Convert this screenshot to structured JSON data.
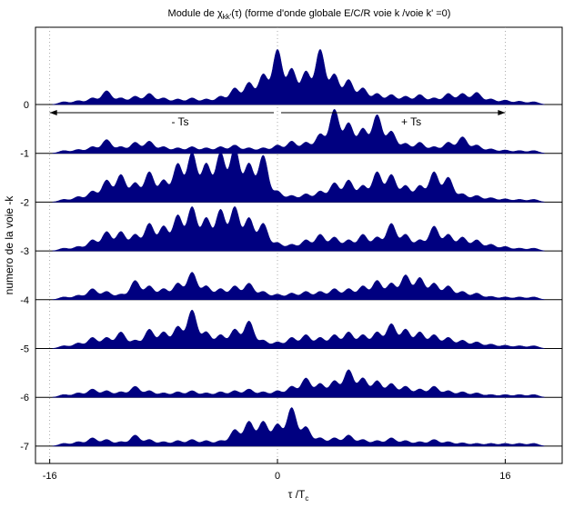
{
  "chart_data": {
    "type": "area",
    "title_prefix": "Module de ",
    "title_symbol": "χ",
    "title_sub": "kk'",
    "title_arg": "(τ)",
    "title_suffix": " (forme d'onde globale E/C/R voie k /voie k' =0)",
    "xlabel_main": "τ /T",
    "xlabel_sub": "c",
    "ylabel": "numero de la voie -k",
    "xlim": [
      -17,
      20
    ],
    "xticks": [
      -16,
      0,
      16
    ],
    "xtick_labels": [
      "-16",
      "0",
      "16"
    ],
    "yticks": [
      "0",
      "-1",
      "-2",
      "-3",
      "-4",
      "-5",
      "-6",
      "-7"
    ],
    "grid": "vertical dotted at x ticks",
    "fill_color": "#000080",
    "annotations": [
      {
        "text": "- Ts",
        "from": 0,
        "to": -16
      },
      {
        "text": "+ Ts",
        "from": 0,
        "to": 16
      }
    ],
    "series": [
      {
        "channel": "0",
        "peaks": [
          [
            -15,
            0.05
          ],
          [
            -14,
            0.07
          ],
          [
            -13,
            0.12
          ],
          [
            -12,
            0.25
          ],
          [
            -11,
            0.12
          ],
          [
            -10,
            0.15
          ],
          [
            -9,
            0.2
          ],
          [
            -8,
            0.12
          ],
          [
            -7,
            0.1
          ],
          [
            -6,
            0.12
          ],
          [
            -5,
            0.1
          ],
          [
            -4,
            0.15
          ],
          [
            -3,
            0.3
          ],
          [
            -2,
            0.4
          ],
          [
            -1,
            0.55
          ],
          [
            0,
            1.0
          ],
          [
            1,
            0.65
          ],
          [
            2,
            0.6
          ],
          [
            3,
            1.0
          ],
          [
            4,
            0.55
          ],
          [
            5,
            0.45
          ],
          [
            6,
            0.3
          ],
          [
            7,
            0.2
          ],
          [
            8,
            0.18
          ],
          [
            9,
            0.15
          ],
          [
            10,
            0.18
          ],
          [
            11,
            0.12
          ],
          [
            12,
            0.2
          ],
          [
            13,
            0.2
          ],
          [
            14,
            0.22
          ],
          [
            15,
            0.1
          ],
          [
            16,
            0.08
          ],
          [
            17,
            0.06
          ],
          [
            18,
            0.05
          ]
        ]
      },
      {
        "channel": "-1",
        "peaks": [
          [
            -15,
            0.05
          ],
          [
            -14,
            0.07
          ],
          [
            -13,
            0.12
          ],
          [
            -12,
            0.25
          ],
          [
            -11,
            0.12
          ],
          [
            -10,
            0.2
          ],
          [
            -9,
            0.22
          ],
          [
            -8,
            0.12
          ],
          [
            -7,
            0.1
          ],
          [
            -6,
            0.12
          ],
          [
            -5,
            0.1
          ],
          [
            -4,
            0.12
          ],
          [
            -3,
            0.15
          ],
          [
            -2,
            0.1
          ],
          [
            -1,
            0.1
          ],
          [
            0,
            0.15
          ],
          [
            1,
            0.22
          ],
          [
            2,
            0.2
          ],
          [
            3,
            0.35
          ],
          [
            4,
            0.8
          ],
          [
            5,
            0.55
          ],
          [
            6,
            0.45
          ],
          [
            7,
            0.7
          ],
          [
            8,
            0.4
          ],
          [
            9,
            0.18
          ],
          [
            10,
            0.2
          ],
          [
            11,
            0.12
          ],
          [
            12,
            0.2
          ],
          [
            13,
            0.3
          ],
          [
            14,
            0.15
          ],
          [
            15,
            0.08
          ],
          [
            16,
            0.06
          ],
          [
            17,
            0.05
          ],
          [
            18,
            0.05
          ]
        ]
      },
      {
        "channel": "-2",
        "peaks": [
          [
            -15,
            0.05
          ],
          [
            -14,
            0.1
          ],
          [
            -13,
            0.2
          ],
          [
            -12,
            0.4
          ],
          [
            -11,
            0.5
          ],
          [
            -10,
            0.35
          ],
          [
            -9,
            0.55
          ],
          [
            -8,
            0.4
          ],
          [
            -7,
            0.7
          ],
          [
            -6,
            0.9
          ],
          [
            -5,
            0.7
          ],
          [
            -4,
            0.9
          ],
          [
            -3,
            1.0
          ],
          [
            -2,
            0.7
          ],
          [
            -1,
            0.85
          ],
          [
            0,
            0.2
          ],
          [
            1,
            0.12
          ],
          [
            2,
            0.15
          ],
          [
            3,
            0.2
          ],
          [
            4,
            0.35
          ],
          [
            5,
            0.4
          ],
          [
            6,
            0.3
          ],
          [
            7,
            0.55
          ],
          [
            8,
            0.5
          ],
          [
            9,
            0.3
          ],
          [
            10,
            0.3
          ],
          [
            11,
            0.55
          ],
          [
            12,
            0.45
          ],
          [
            13,
            0.15
          ],
          [
            14,
            0.12
          ],
          [
            15,
            0.08
          ],
          [
            16,
            0.06
          ],
          [
            17,
            0.05
          ],
          [
            18,
            0.05
          ]
        ]
      },
      {
        "channel": "-3",
        "peaks": [
          [
            -15,
            0.05
          ],
          [
            -14,
            0.08
          ],
          [
            -13,
            0.2
          ],
          [
            -12,
            0.35
          ],
          [
            -11,
            0.35
          ],
          [
            -10,
            0.3
          ],
          [
            -9,
            0.5
          ],
          [
            -8,
            0.45
          ],
          [
            -7,
            0.65
          ],
          [
            -6,
            0.8
          ],
          [
            -5,
            0.6
          ],
          [
            -4,
            0.75
          ],
          [
            -3,
            0.8
          ],
          [
            -2,
            0.6
          ],
          [
            -1,
            0.5
          ],
          [
            0,
            0.15
          ],
          [
            1,
            0.12
          ],
          [
            2,
            0.2
          ],
          [
            3,
            0.3
          ],
          [
            4,
            0.25
          ],
          [
            5,
            0.2
          ],
          [
            6,
            0.3
          ],
          [
            7,
            0.25
          ],
          [
            8,
            0.5
          ],
          [
            9,
            0.3
          ],
          [
            10,
            0.2
          ],
          [
            11,
            0.45
          ],
          [
            12,
            0.3
          ],
          [
            13,
            0.25
          ],
          [
            14,
            0.2
          ],
          [
            15,
            0.12
          ],
          [
            16,
            0.08
          ],
          [
            17,
            0.05
          ],
          [
            18,
            0.05
          ]
        ]
      },
      {
        "channel": "-4",
        "peaks": [
          [
            -15,
            0.05
          ],
          [
            -14,
            0.08
          ],
          [
            -13,
            0.2
          ],
          [
            -12,
            0.15
          ],
          [
            -11,
            0.1
          ],
          [
            -10,
            0.35
          ],
          [
            -9,
            0.25
          ],
          [
            -8,
            0.2
          ],
          [
            -7,
            0.3
          ],
          [
            -6,
            0.5
          ],
          [
            -5,
            0.25
          ],
          [
            -4,
            0.2
          ],
          [
            -3,
            0.25
          ],
          [
            -2,
            0.3
          ],
          [
            -1,
            0.15
          ],
          [
            0,
            0.1
          ],
          [
            1,
            0.12
          ],
          [
            2,
            0.15
          ],
          [
            3,
            0.15
          ],
          [
            4,
            0.2
          ],
          [
            5,
            0.2
          ],
          [
            6,
            0.25
          ],
          [
            7,
            0.35
          ],
          [
            8,
            0.3
          ],
          [
            9,
            0.45
          ],
          [
            10,
            0.4
          ],
          [
            11,
            0.3
          ],
          [
            12,
            0.25
          ],
          [
            13,
            0.15
          ],
          [
            14,
            0.12
          ],
          [
            15,
            0.06
          ],
          [
            16,
            0.05
          ],
          [
            17,
            0.05
          ],
          [
            18,
            0.05
          ]
        ]
      },
      {
        "channel": "-5",
        "peaks": [
          [
            -15,
            0.05
          ],
          [
            -14,
            0.1
          ],
          [
            -13,
            0.2
          ],
          [
            -12,
            0.2
          ],
          [
            -11,
            0.3
          ],
          [
            -10,
            0.15
          ],
          [
            -9,
            0.35
          ],
          [
            -8,
            0.3
          ],
          [
            -7,
            0.4
          ],
          [
            -6,
            0.7
          ],
          [
            -5,
            0.3
          ],
          [
            -4,
            0.25
          ],
          [
            -3,
            0.35
          ],
          [
            -2,
            0.5
          ],
          [
            -1,
            0.15
          ],
          [
            0,
            0.12
          ],
          [
            1,
            0.2
          ],
          [
            2,
            0.25
          ],
          [
            3,
            0.2
          ],
          [
            4,
            0.25
          ],
          [
            5,
            0.3
          ],
          [
            6,
            0.25
          ],
          [
            7,
            0.3
          ],
          [
            8,
            0.45
          ],
          [
            9,
            0.35
          ],
          [
            10,
            0.3
          ],
          [
            11,
            0.25
          ],
          [
            12,
            0.2
          ],
          [
            13,
            0.15
          ],
          [
            14,
            0.12
          ],
          [
            15,
            0.08
          ],
          [
            16,
            0.06
          ],
          [
            17,
            0.05
          ],
          [
            18,
            0.05
          ]
        ]
      },
      {
        "channel": "-6",
        "peaks": [
          [
            -15,
            0.05
          ],
          [
            -14,
            0.08
          ],
          [
            -13,
            0.15
          ],
          [
            -12,
            0.12
          ],
          [
            -11,
            0.1
          ],
          [
            -10,
            0.2
          ],
          [
            -9,
            0.12
          ],
          [
            -8,
            0.08
          ],
          [
            -7,
            0.1
          ],
          [
            -6,
            0.12
          ],
          [
            -5,
            0.08
          ],
          [
            -4,
            0.1
          ],
          [
            -3,
            0.12
          ],
          [
            -2,
            0.15
          ],
          [
            -1,
            0.1
          ],
          [
            0,
            0.12
          ],
          [
            1,
            0.2
          ],
          [
            2,
            0.35
          ],
          [
            3,
            0.25
          ],
          [
            4,
            0.3
          ],
          [
            5,
            0.5
          ],
          [
            6,
            0.35
          ],
          [
            7,
            0.3
          ],
          [
            8,
            0.25
          ],
          [
            9,
            0.2
          ],
          [
            10,
            0.15
          ],
          [
            11,
            0.2
          ],
          [
            12,
            0.12
          ],
          [
            13,
            0.1
          ],
          [
            14,
            0.08
          ],
          [
            15,
            0.05
          ],
          [
            16,
            0.05
          ],
          [
            17,
            0.05
          ],
          [
            18,
            0.05
          ]
        ]
      },
      {
        "channel": "-7",
        "peaks": [
          [
            -15,
            0.05
          ],
          [
            -14,
            0.08
          ],
          [
            -13,
            0.15
          ],
          [
            -12,
            0.12
          ],
          [
            -11,
            0.08
          ],
          [
            -10,
            0.2
          ],
          [
            -9,
            0.12
          ],
          [
            -8,
            0.08
          ],
          [
            -7,
            0.1
          ],
          [
            -6,
            0.12
          ],
          [
            -5,
            0.1
          ],
          [
            -4,
            0.1
          ],
          [
            -3,
            0.3
          ],
          [
            -2,
            0.45
          ],
          [
            -1,
            0.45
          ],
          [
            0,
            0.4
          ],
          [
            1,
            0.7
          ],
          [
            2,
            0.35
          ],
          [
            3,
            0.15
          ],
          [
            4,
            0.15
          ],
          [
            5,
            0.2
          ],
          [
            6,
            0.12
          ],
          [
            7,
            0.1
          ],
          [
            8,
            0.15
          ],
          [
            9,
            0.1
          ],
          [
            10,
            0.08
          ],
          [
            11,
            0.12
          ],
          [
            12,
            0.08
          ],
          [
            13,
            0.06
          ],
          [
            14,
            0.05
          ],
          [
            15,
            0.05
          ],
          [
            16,
            0.05
          ],
          [
            17,
            0.05
          ],
          [
            18,
            0.05
          ]
        ]
      }
    ]
  }
}
